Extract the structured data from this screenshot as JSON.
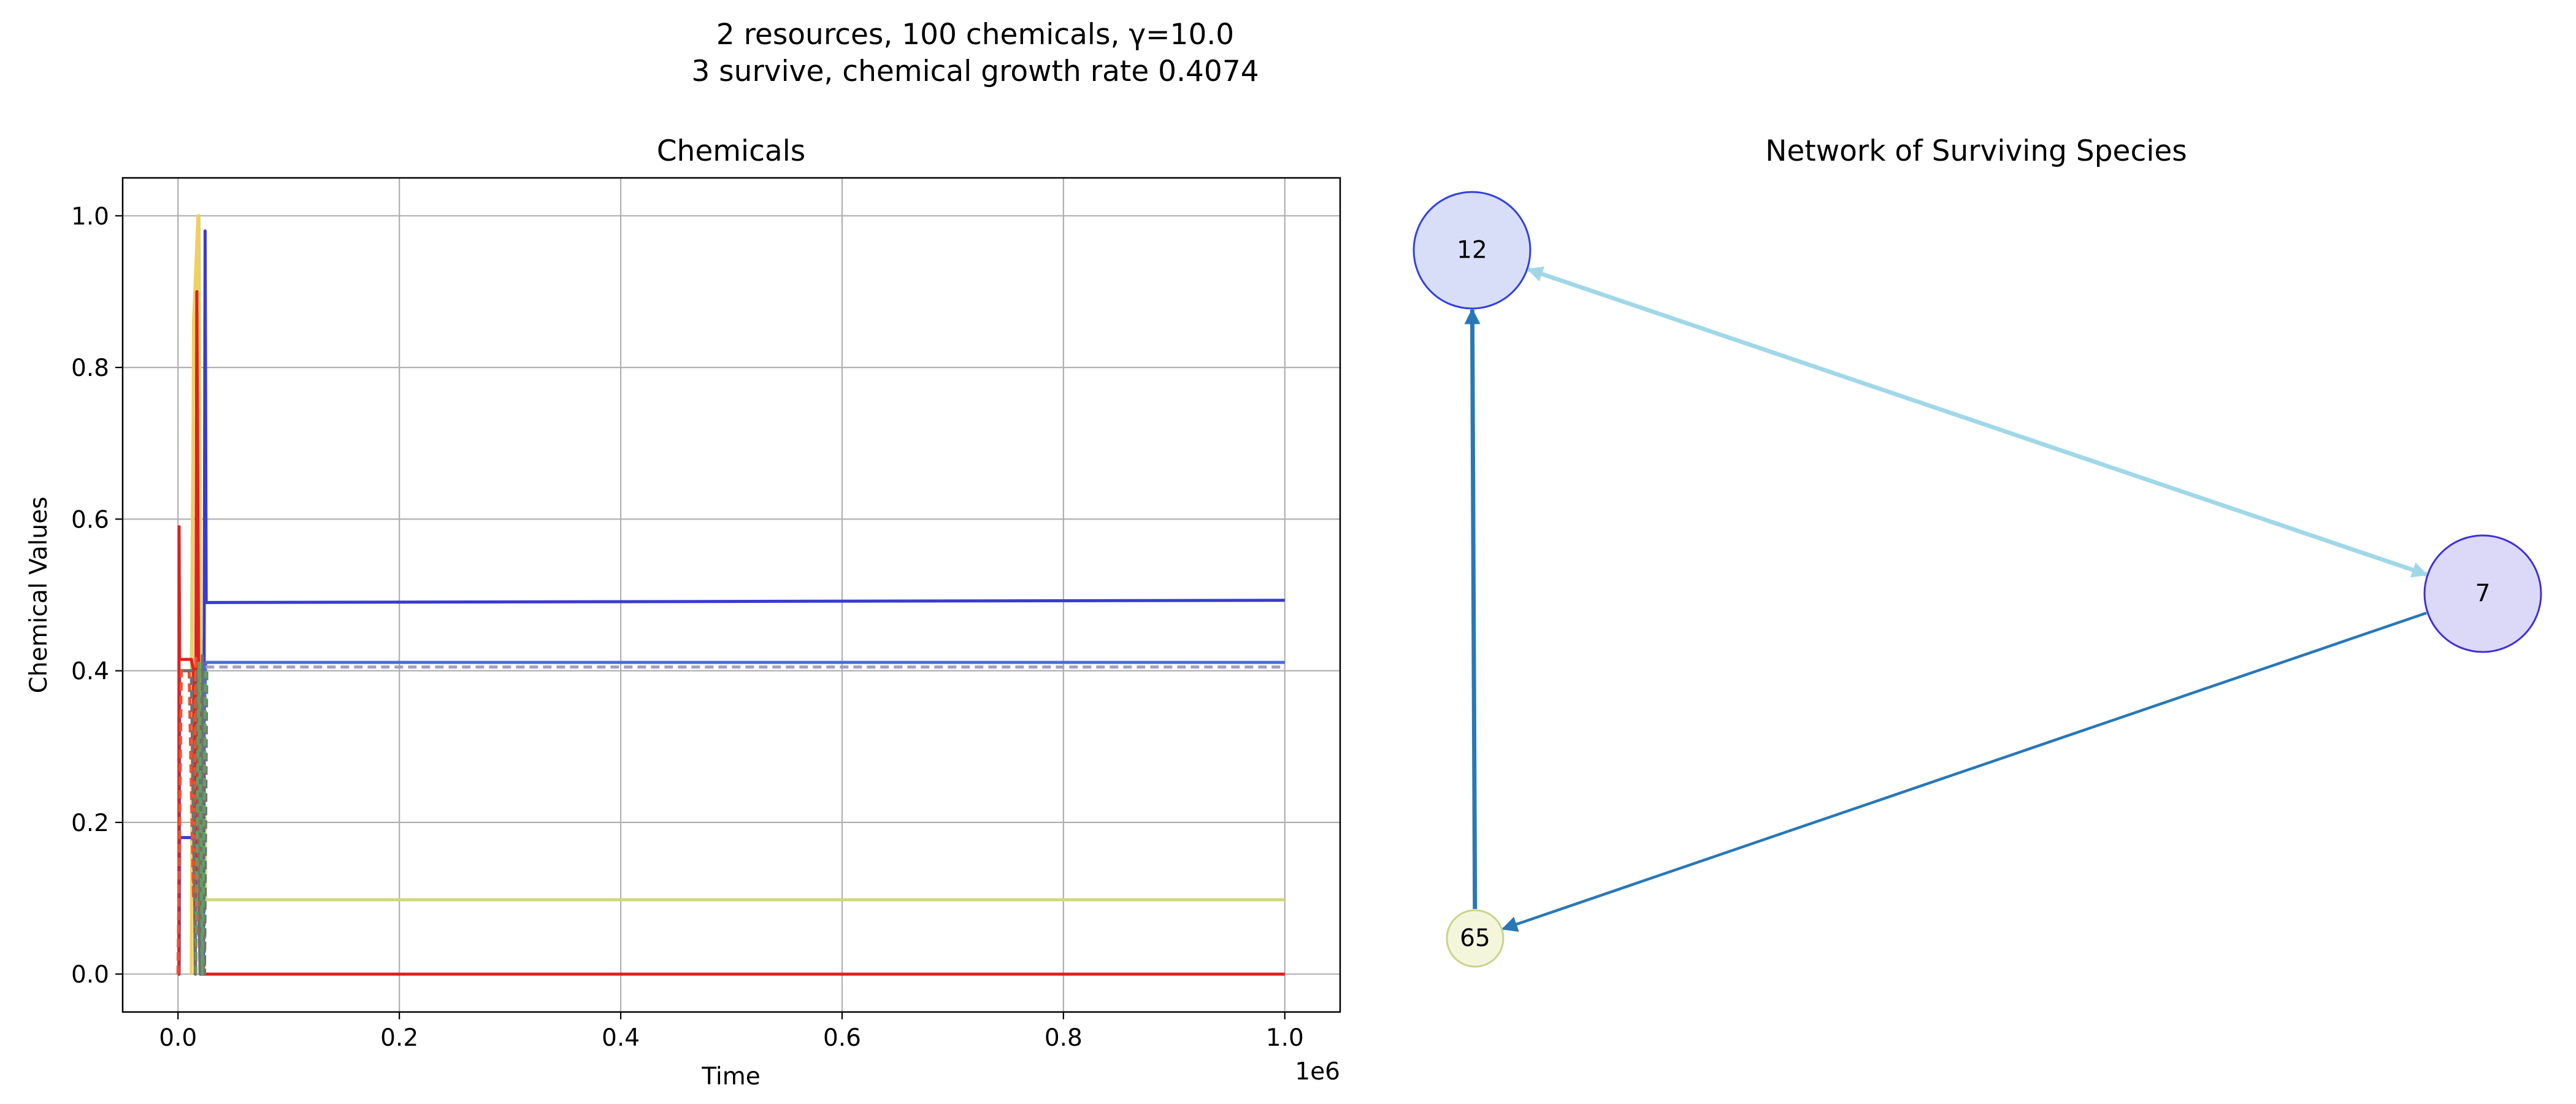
{
  "figure": {
    "title_line1": "2 resources, 100 chemicals, γ=10.0",
    "title_line2": "3 survive, chemical growth rate 0.4074"
  },
  "chart_data": [
    {
      "type": "line",
      "title": "Chemicals",
      "xlabel": "Time",
      "ylabel": "Chemical Values",
      "x_offset_label": "1e6",
      "xlim": [
        -0.05,
        1.05
      ],
      "ylim": [
        -0.05,
        1.05
      ],
      "x_scale": 1000000,
      "xticks": [
        0.0,
        0.2,
        0.4,
        0.6,
        0.8,
        1.0
      ],
      "xtick_labels": [
        "0.0",
        "0.2",
        "0.4",
        "0.6",
        "0.8",
        "1.0"
      ],
      "yticks": [
        0.0,
        0.2,
        0.4,
        0.6,
        0.8,
        1.0
      ],
      "ytick_labels": [
        "0.0",
        "0.2",
        "0.4",
        "0.6",
        "0.8",
        "1.0"
      ],
      "grid": true,
      "series": [
        {
          "color": "#cfd878",
          "style": "solid",
          "points": [
            [
              0,
              0
            ],
            [
              0.001,
              0
            ],
            [
              0.0015,
              0.4
            ],
            [
              0.012,
              0.4
            ],
            [
              0.014,
              0.8
            ],
            [
              0.017,
              0.94
            ],
            [
              0.019,
              1.0
            ],
            [
              0.021,
              0.3
            ],
            [
              0.023,
              0.44
            ],
            [
              0.025,
              0.098
            ],
            [
              1.0,
              0.098
            ]
          ]
        },
        {
          "color": "#f0d060",
          "style": "solid",
          "points": [
            [
              0.012,
              0
            ],
            [
              0.014,
              0.86
            ],
            [
              0.016,
              0.93
            ],
            [
              0.018,
              1.0
            ],
            [
              0.02,
              0.2
            ],
            [
              0.022,
              0
            ]
          ]
        },
        {
          "color": "#3a3ad0",
          "style": "solid",
          "points": [
            [
              0,
              0
            ],
            [
              0.001,
              0
            ],
            [
              0.0015,
              0.18
            ],
            [
              0.018,
              0.18
            ],
            [
              0.02,
              0
            ],
            [
              0.023,
              0
            ],
            [
              0.0245,
              0.98
            ],
            [
              0.0255,
              0.49
            ],
            [
              1.0,
              0.493
            ]
          ]
        },
        {
          "color": "#4a6ad8",
          "style": "solid",
          "points": [
            [
              0,
              0
            ],
            [
              0.001,
              0
            ],
            [
              0.0015,
              0.4
            ],
            [
              0.015,
              0.4
            ],
            [
              0.017,
              0.35
            ],
            [
              0.019,
              0.05
            ],
            [
              0.023,
              0.3
            ],
            [
              0.025,
              0.411
            ],
            [
              1.0,
              0.411
            ]
          ]
        },
        {
          "color": "#a0a0c8",
          "style": "dashed",
          "points": [
            [
              0.025,
              0.405
            ],
            [
              1.0,
              0.405
            ]
          ]
        },
        {
          "color": "#e02020",
          "style": "solid",
          "points": [
            [
              0,
              0
            ],
            [
              0.0008,
              0
            ],
            [
              0.001,
              0.59
            ],
            [
              0.0014,
              0.415
            ],
            [
              0.012,
              0.415
            ],
            [
              0.014,
              0.4
            ],
            [
              0.0155,
              0.0
            ],
            [
              0.017,
              0.9
            ],
            [
              0.0185,
              0.45
            ],
            [
              0.02,
              0.1
            ],
            [
              0.022,
              0
            ],
            [
              1.0,
              0
            ]
          ]
        },
        {
          "color": "#f05030",
          "style": "dashed",
          "points": [
            [
              0.0,
              0
            ],
            [
              0.003,
              0.4
            ],
            [
              0.01,
              0.4
            ],
            [
              0.014,
              0.1
            ],
            [
              0.016,
              0.42
            ],
            [
              0.02,
              0.03
            ],
            [
              0.024,
              0.0
            ]
          ]
        },
        {
          "color": "#707070",
          "style": "dashed",
          "points": [
            [
              0.005,
              0.4
            ],
            [
              0.012,
              0.4
            ],
            [
              0.016,
              0.0
            ],
            [
              0.018,
              0.4
            ],
            [
              0.02,
              0.0
            ],
            [
              0.022,
              0.42
            ],
            [
              0.024,
              0.0
            ],
            [
              0.026,
              0.4
            ]
          ]
        },
        {
          "color": "#60a060",
          "style": "dashed",
          "points": [
            [
              0.016,
              0.0
            ],
            [
              0.019,
              0.41
            ],
            [
              0.022,
              0.0
            ],
            [
              0.025,
              0.4
            ]
          ]
        }
      ]
    },
    {
      "type": "network",
      "title": "Network of Surviving Species",
      "nodes": [
        {
          "id": "12",
          "label": "12",
          "fill": "#d8def8",
          "stroke": "#3040e0",
          "size": "large"
        },
        {
          "id": "7",
          "label": "7",
          "fill": "#dcd8f8",
          "stroke": "#4030d8",
          "size": "large"
        },
        {
          "id": "65",
          "label": "65",
          "fill": "#f4f6dc",
          "stroke": "#c8d488",
          "size": "small"
        }
      ],
      "edges": [
        {
          "from": "12",
          "to": "7",
          "color": "#a0d8e8",
          "bidirectional": true
        },
        {
          "from": "7",
          "to": "65",
          "color": "#2878b8",
          "bidirectional": false
        },
        {
          "from": "65",
          "to": "12",
          "color": "#2878b8",
          "bidirectional": false
        }
      ]
    }
  ]
}
